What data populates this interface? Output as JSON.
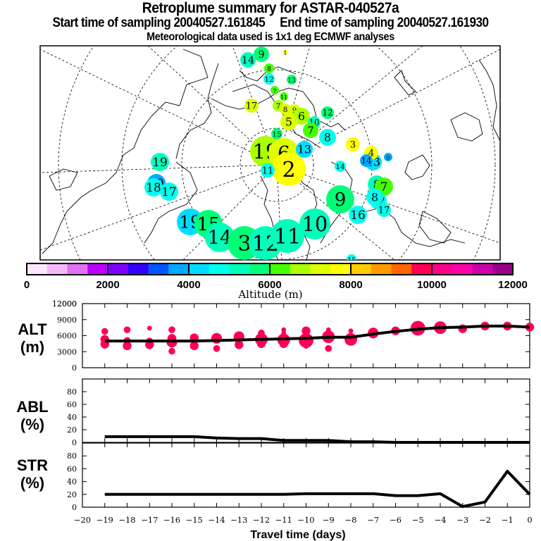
{
  "header": {
    "title": "Retroplume summary for ASTAR-040527a",
    "sampling_line": "Start time of sampling 20040527.161845     End time of sampling 20040527.161930",
    "met_line": "Meteorological data used is 1x1 deg ECMWF analyses"
  },
  "map": {
    "projection": "polar stereographic",
    "clusters": [
      {
        "label": "9",
        "alt": 5800
      },
      {
        "label": "14",
        "alt": 5300
      },
      {
        "label": "1",
        "alt": 7600
      },
      {
        "label": "8",
        "alt": 6000
      },
      {
        "label": "12",
        "alt": 4800
      },
      {
        "label": "13",
        "alt": 5500
      },
      {
        "label": "7",
        "alt": 6000
      },
      {
        "label": "11",
        "alt": 6100
      },
      {
        "label": "17",
        "alt": 7200
      },
      {
        "label": "7",
        "alt": 6600
      },
      {
        "label": "8",
        "alt": 7000
      },
      {
        "label": "9",
        "alt": 7200
      },
      {
        "label": "6",
        "alt": 6900
      },
      {
        "label": "5",
        "alt": 7200
      },
      {
        "label": "10",
        "alt": 5000
      },
      {
        "label": "7",
        "alt": 6200
      },
      {
        "label": "8",
        "alt": 4700
      },
      {
        "label": "12",
        "alt": 5800
      },
      {
        "label": "14",
        "alt": 4700
      },
      {
        "label": "13",
        "alt": 4100
      },
      {
        "label": "15",
        "alt": 5600
      },
      {
        "label": "19",
        "alt": 6600
      },
      {
        "label": "6",
        "alt": 7200
      },
      {
        "label": "2",
        "alt": 7700
      },
      {
        "label": "3",
        "alt": 7700
      },
      {
        "label": "4",
        "alt": 7500
      },
      {
        "label": "9",
        "alt": 3700
      },
      {
        "label": "11",
        "alt": 4500
      },
      {
        "label": "19",
        "alt": 5200
      },
      {
        "label": "10",
        "alt": 3700
      },
      {
        "label": "18",
        "alt": 4500
      },
      {
        "label": "17",
        "alt": 4500
      },
      {
        "label": "19",
        "alt": 4300
      },
      {
        "label": "15",
        "alt": 5600
      },
      {
        "label": "14",
        "alt": 5200
      },
      {
        "label": "3",
        "alt": 5700
      },
      {
        "label": "12",
        "alt": 5200
      },
      {
        "label": "11",
        "alt": 5200
      },
      {
        "label": "10",
        "alt": 5200
      },
      {
        "label": "9",
        "alt": 5900
      },
      {
        "label": "8",
        "alt": 5300
      },
      {
        "label": "7",
        "alt": 6300
      },
      {
        "label": "12",
        "alt": 4500
      },
      {
        "label": "8",
        "alt": 4500
      },
      {
        "label": "17",
        "alt": 4500
      },
      {
        "label": "16",
        "alt": 4700
      },
      {
        "label": "15",
        "alt": 4500
      },
      {
        "label": "13",
        "alt": 4300
      },
      {
        "label": "14",
        "alt": 3700
      }
    ]
  },
  "colorbar": {
    "label": "Altitude (m)",
    "ticks": [
      "0",
      "2000",
      "4000",
      "6000",
      "8000",
      "10000",
      "12000"
    ],
    "colors": [
      "#ffe6ff",
      "#f4b8f8",
      "#e070f4",
      "#c000ff",
      "#8000ff",
      "#3300ff",
      "#0055ff",
      "#00aaff",
      "#00ddff",
      "#00ffee",
      "#00ffbb",
      "#00ff77",
      "#44ff00",
      "#aaff00",
      "#ddff00",
      "#ffff00",
      "#ffcc00",
      "#ff9900",
      "#ff6600",
      "#ff0055",
      "#ff0088",
      "#ff00aa",
      "#cc00aa",
      "#990088"
    ]
  },
  "chart_data": [
    {
      "type": "line",
      "panel": "ALT",
      "ylabel_line1": "ALT",
      "ylabel_line2": "(m)",
      "ylim": [
        0,
        12000
      ],
      "yticks": [
        "0",
        "3000",
        "6000",
        "9000",
        "12000"
      ],
      "xlim": [
        -20,
        0
      ],
      "x": [
        -19,
        -18,
        -17,
        -16,
        -15,
        -14,
        -13,
        -12,
        -11,
        -10,
        -9,
        -8,
        -7,
        -6,
        -5,
        -4,
        -3,
        -2,
        -1,
        0
      ],
      "series": [
        {
          "name": "mean altitude",
          "color": "#000000",
          "values": [
            5000,
            5000,
            5000,
            5000,
            5000,
            5100,
            5200,
            5300,
            5400,
            5500,
            5700,
            5700,
            6300,
            6800,
            7200,
            7500,
            7600,
            7800,
            7800,
            7600
          ]
        }
      ],
      "scatter": {
        "name": "cluster altitudes",
        "color": "#ff0055",
        "points": [
          [
            -19,
            6800,
            2
          ],
          [
            -19,
            5300,
            3
          ],
          [
            -19,
            4400,
            3
          ],
          [
            -18,
            7100,
            2
          ],
          [
            -18,
            5100,
            2
          ],
          [
            -18,
            4100,
            3
          ],
          [
            -17,
            7400,
            1
          ],
          [
            -17,
            5000,
            2
          ],
          [
            -17,
            4300,
            3
          ],
          [
            -16,
            7100,
            2
          ],
          [
            -16,
            5500,
            3
          ],
          [
            -16,
            4800,
            4
          ],
          [
            -16,
            3100,
            2
          ],
          [
            -15,
            5600,
            3
          ],
          [
            -15,
            4100,
            3
          ],
          [
            -14,
            5500,
            4
          ],
          [
            -14,
            3600,
            2
          ],
          [
            -13,
            5800,
            4
          ],
          [
            -13,
            4300,
            3
          ],
          [
            -12,
            6500,
            2
          ],
          [
            -12,
            5300,
            5
          ],
          [
            -12,
            4500,
            3
          ],
          [
            -11,
            7100,
            1
          ],
          [
            -11,
            6500,
            1
          ],
          [
            -11,
            5200,
            5
          ],
          [
            -11,
            4500,
            3
          ],
          [
            -10,
            6900,
            3
          ],
          [
            -10,
            5100,
            6
          ],
          [
            -10,
            4000,
            1
          ],
          [
            -9,
            7100,
            1
          ],
          [
            -9,
            5800,
            5
          ],
          [
            -9,
            3600,
            2
          ],
          [
            -8,
            6900,
            1
          ],
          [
            -8,
            5300,
            5
          ],
          [
            -7,
            6500,
            4
          ],
          [
            -6,
            6900,
            3
          ],
          [
            -5,
            7400,
            6
          ],
          [
            -4,
            7500,
            5
          ],
          [
            -3,
            7300,
            3
          ],
          [
            -2,
            7800,
            3
          ],
          [
            -1,
            7800,
            3
          ],
          [
            0,
            7600,
            3
          ]
        ]
      }
    },
    {
      "type": "line",
      "panel": "ABL",
      "ylabel_line1": "ABL",
      "ylabel_line2": "(%)",
      "ylim": [
        0,
        100
      ],
      "yticks": [
        "0",
        "20",
        "40",
        "60",
        "80"
      ],
      "xlim": [
        -20,
        0
      ],
      "x": [
        -19,
        -18,
        -17,
        -16,
        -15,
        -14,
        -13,
        -12,
        -11,
        -10,
        -9,
        -8,
        -7,
        -6,
        -5,
        -4,
        -3,
        -2,
        -1,
        0
      ],
      "series": [
        {
          "name": "ABL fraction",
          "color": "#000000",
          "values": [
            9,
            9,
            9,
            9,
            9,
            7,
            6,
            6,
            3,
            3,
            3,
            1,
            1,
            0,
            0,
            0,
            0,
            0,
            0,
            0
          ]
        }
      ]
    },
    {
      "type": "line",
      "panel": "STR",
      "ylabel_line1": "STR",
      "ylabel_line2": "(%)",
      "ylim": [
        0,
        100
      ],
      "yticks": [
        "0",
        "20",
        "40",
        "60",
        "80"
      ],
      "xlim": [
        -20,
        0
      ],
      "x": [
        -19,
        -18,
        -17,
        -16,
        -15,
        -14,
        -13,
        -12,
        -11,
        -10,
        -9,
        -8,
        -7,
        -6,
        -5,
        -4,
        -3,
        -2,
        -1,
        0
      ],
      "series": [
        {
          "name": "stratospheric fraction",
          "color": "#000000",
          "values": [
            20,
            20,
            20,
            20,
            20,
            20,
            20,
            20,
            20,
            21,
            21,
            21,
            21,
            18,
            18,
            21,
            1,
            8,
            56,
            20
          ]
        }
      ],
      "xlabel": "Travel time (days)",
      "xticks": [
        "-20",
        "-19",
        "-18",
        "-17",
        "-16",
        "-15",
        "-14",
        "-13",
        "-12",
        "-11",
        "-10",
        "-9",
        "-8",
        "-7",
        "-6",
        "-5",
        "-4",
        "-3",
        "-2",
        "-1",
        "0"
      ]
    }
  ]
}
